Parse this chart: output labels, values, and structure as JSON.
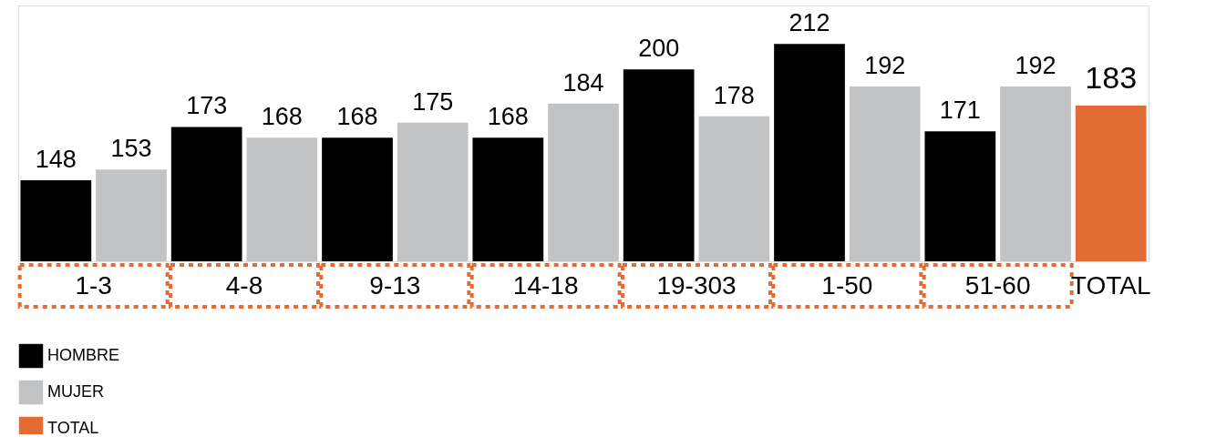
{
  "chart_data": {
    "type": "bar",
    "categories": [
      "1-3",
      "4-8",
      "9-13",
      "14-18",
      "19-303",
      "1-50",
      "51-60",
      "TOTAL"
    ],
    "series": [
      {
        "name": "HOMBRE",
        "color": "#000000",
        "values": [
          148,
          173,
          168,
          168,
          200,
          212,
          171,
          null
        ]
      },
      {
        "name": "MUJER",
        "color": "#c2c3c5",
        "values": [
          153,
          168,
          175,
          184,
          178,
          192,
          192,
          null
        ]
      },
      {
        "name": "TOTAL",
        "color": "#e26c33",
        "values": [
          null,
          null,
          null,
          null,
          null,
          null,
          null,
          183
        ]
      }
    ],
    "ylim": [
      110,
      230
    ],
    "data_labels": true,
    "tick_labels": "x",
    "legend": "bottom left"
  }
}
